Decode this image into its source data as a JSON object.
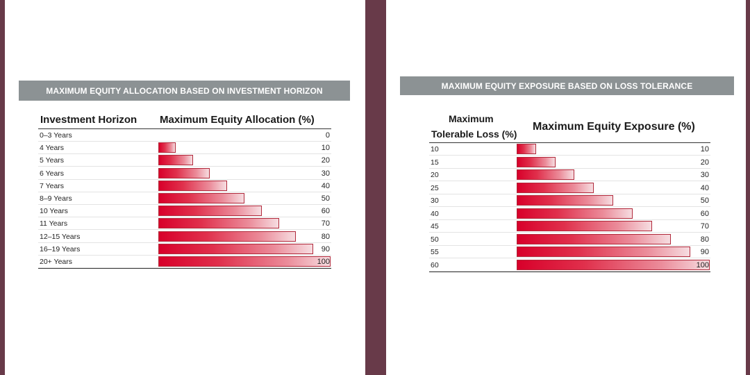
{
  "chart_data": [
    {
      "type": "bar",
      "title": "MAXIMUM EQUITY ALLOCATION BASED ON INVESTMENT HORIZON",
      "category_header": "Investment Horizon",
      "value_header": "Maximum Equity Allocation (%)",
      "categories": [
        "0–3 Years",
        "4 Years",
        "5 Years",
        "6 Years",
        "7 Years",
        "8–9 Years",
        "10 Years",
        "11 Years",
        "12–15 Years",
        "16–19 Years",
        "20+ Years"
      ],
      "values": [
        0,
        10,
        20,
        30,
        40,
        50,
        60,
        70,
        80,
        90,
        100
      ],
      "xlim": [
        0,
        100
      ],
      "bar_color": "#d8002a"
    },
    {
      "type": "bar",
      "title": "MAXIMUM EQUITY EXPOSURE BASED ON LOSS TOLERANCE",
      "category_header_line1": "Maximum",
      "category_header_line2": "Tolerable Loss (%)",
      "value_header": "Maximum Equity Exposure (%)",
      "categories": [
        "10",
        "15",
        "20",
        "25",
        "30",
        "40",
        "45",
        "50",
        "55",
        "60"
      ],
      "values": [
        10,
        20,
        30,
        40,
        50,
        60,
        70,
        80,
        90,
        100
      ],
      "xlim": [
        0,
        100
      ],
      "bar_color": "#d8002a"
    }
  ],
  "colors": {
    "frame": "#683a49",
    "title_bar": "#8c9294",
    "bar_start": "#d8002a",
    "bar_end": "#f6dde1"
  }
}
